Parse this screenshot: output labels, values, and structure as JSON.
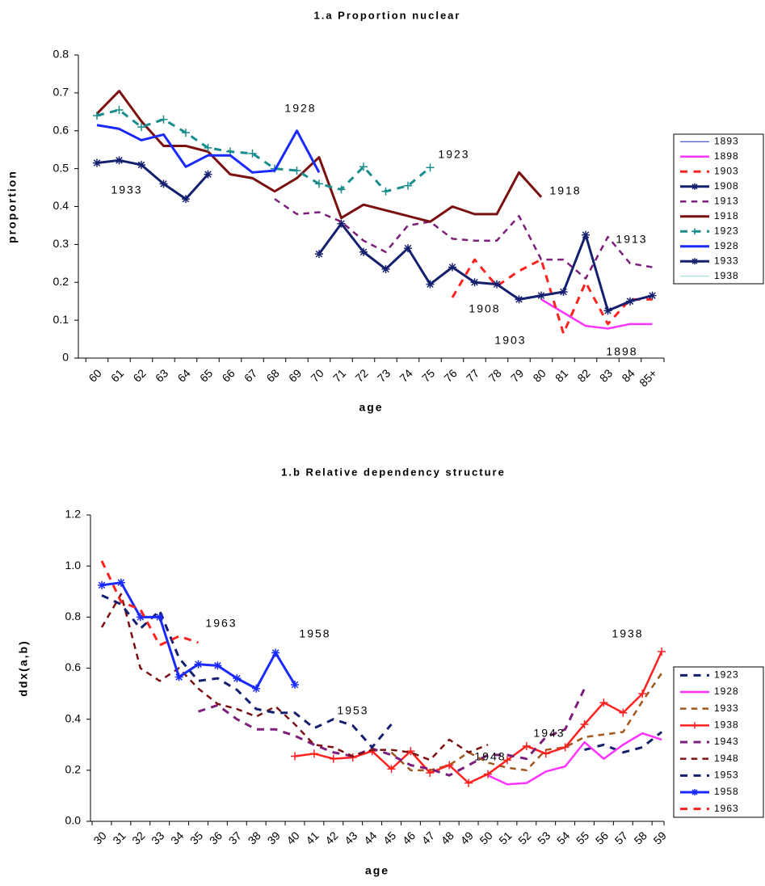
{
  "chart_data": [
    {
      "type": "line",
      "title": "1.a Proportion nuclear",
      "x_label": "age",
      "y_label": "proportion",
      "categories": [
        "60",
        "61",
        "62",
        "63",
        "64",
        "65",
        "66",
        "67",
        "68",
        "69",
        "70",
        "71",
        "72",
        "73",
        "74",
        "75",
        "76",
        "77",
        "78",
        "79",
        "80",
        "81",
        "82",
        "83",
        "84",
        "85+"
      ],
      "ylim": [
        0,
        0.8
      ],
      "yticks": [
        0,
        0.1,
        0.2,
        0.3,
        0.4,
        0.5,
        0.6,
        0.7,
        0.8
      ],
      "legend": "right",
      "series": [
        {
          "name": "1893",
          "color": "#1f2fb0",
          "width": 1,
          "dash": false,
          "marker": "none",
          "values": [
            null,
            null,
            null,
            null,
            null,
            null,
            null,
            null,
            null,
            null,
            null,
            null,
            null,
            null,
            null,
            null,
            null,
            null,
            null,
            null,
            null,
            null,
            null,
            null,
            null,
            null
          ]
        },
        {
          "name": "1898",
          "color": "#ff33ff",
          "width": 2.5,
          "dash": false,
          "marker": "none",
          "values": [
            null,
            null,
            null,
            null,
            null,
            null,
            null,
            null,
            null,
            null,
            null,
            null,
            null,
            null,
            null,
            null,
            null,
            null,
            null,
            null,
            0.155,
            0.12,
            0.085,
            0.078,
            0.09,
            0.09
          ]
        },
        {
          "name": "1903",
          "color": "#ff2020",
          "width": 3,
          "dash": true,
          "marker": "none",
          "values": [
            null,
            null,
            null,
            null,
            null,
            null,
            null,
            null,
            null,
            null,
            null,
            null,
            null,
            null,
            null,
            null,
            0.16,
            0.26,
            0.19,
            0.23,
            0.26,
            0.065,
            0.2,
            0.09,
            0.155,
            0.155
          ]
        },
        {
          "name": "1908",
          "color": "#14206e",
          "width": 3,
          "dash": false,
          "marker": "star",
          "values": [
            null,
            null,
            null,
            null,
            null,
            null,
            null,
            null,
            null,
            null,
            0.275,
            0.355,
            0.28,
            0.235,
            0.29,
            0.195,
            0.24,
            0.2,
            0.195,
            0.155,
            0.165,
            0.175,
            0.325,
            0.125,
            0.15,
            0.165
          ]
        },
        {
          "name": "1913",
          "color": "#7b1f7b",
          "width": 2.5,
          "dash": true,
          "marker": "none",
          "values": [
            null,
            null,
            null,
            null,
            null,
            null,
            null,
            null,
            0.42,
            0.38,
            0.385,
            0.36,
            0.31,
            0.28,
            0.35,
            0.36,
            0.315,
            0.31,
            0.31,
            0.375,
            0.26,
            0.26,
            0.21,
            0.32,
            0.25,
            0.24
          ]
        },
        {
          "name": "1918",
          "color": "#7a1010",
          "width": 3,
          "dash": false,
          "marker": "none",
          "values": [
            0.645,
            0.705,
            0.625,
            0.56,
            0.56,
            0.545,
            0.485,
            0.475,
            0.44,
            0.475,
            0.53,
            0.37,
            0.405,
            0.39,
            0.375,
            0.36,
            0.4,
            0.38,
            0.38,
            0.49,
            0.425,
            null,
            null,
            null,
            null,
            null
          ]
        },
        {
          "name": "1923",
          "color": "#1a8c8c",
          "width": 3,
          "dash": true,
          "marker": "plus",
          "values": [
            0.64,
            0.655,
            0.61,
            0.63,
            0.595,
            0.555,
            0.545,
            0.54,
            0.5,
            0.495,
            0.46,
            0.445,
            0.505,
            0.44,
            0.455,
            0.503,
            null,
            null,
            null,
            null,
            null,
            null,
            null,
            null,
            null,
            null
          ]
        },
        {
          "name": "1928",
          "color": "#1a2aff",
          "width": 3,
          "dash": false,
          "marker": "none",
          "values": [
            0.615,
            0.605,
            0.575,
            0.59,
            0.505,
            0.535,
            0.535,
            0.49,
            0.495,
            0.6,
            0.49,
            null,
            null,
            null,
            null,
            null,
            null,
            null,
            null,
            null,
            null,
            null,
            null,
            null,
            null,
            null
          ]
        },
        {
          "name": "1933",
          "color": "#14206e",
          "width": 3,
          "dash": false,
          "marker": "star",
          "values": [
            0.515,
            0.522,
            0.51,
            0.46,
            0.42,
            0.485,
            null,
            null,
            null,
            null,
            null,
            null,
            null,
            null,
            null,
            null,
            null,
            null,
            null,
            null,
            null,
            null,
            null,
            null,
            null,
            null
          ]
        },
        {
          "name": "1938",
          "color": "#8fe0d8",
          "width": 1,
          "dash": false,
          "marker": "none",
          "values": [
            null,
            null,
            null,
            null,
            null,
            null,
            null,
            null,
            null,
            null,
            null,
            null,
            null,
            null,
            null,
            null,
            null,
            null,
            null,
            null,
            null,
            null,
            null,
            null,
            null,
            null
          ]
        }
      ],
      "annotations": [
        "1928",
        "1923",
        "1933",
        "1918",
        "1913",
        "1908",
        "1903",
        "1898"
      ]
    },
    {
      "type": "line",
      "title": "1.b Relative dependency structure",
      "x_label": "age",
      "y_label": "ddx(a,b)",
      "categories": [
        "30",
        "31",
        "32",
        "33",
        "34",
        "35",
        "36",
        "37",
        "38",
        "39",
        "40",
        "41",
        "42",
        "43",
        "44",
        "45",
        "46",
        "47",
        "48",
        "49",
        "50",
        "51",
        "52",
        "53",
        "54",
        "55",
        "56",
        "57",
        "58",
        "59"
      ],
      "ylim": [
        0,
        1.2
      ],
      "yticks": [
        {
          "value": 0,
          "label": "0.0"
        },
        0.2,
        0.4,
        0.6,
        0.8,
        {
          "value": 1,
          "label": "1.0"
        },
        1.2
      ],
      "legend": "right",
      "series": [
        {
          "name": "1923",
          "color": "#14206e",
          "width": 3,
          "dash": true,
          "marker": "none",
          "values": [
            null,
            null,
            null,
            null,
            null,
            null,
            null,
            null,
            null,
            null,
            null,
            null,
            null,
            null,
            null,
            null,
            null,
            null,
            null,
            null,
            null,
            null,
            null,
            null,
            null,
            0.28,
            0.3,
            0.27,
            0.29,
            0.35
          ]
        },
        {
          "name": "1928",
          "color": "#ff33ff",
          "width": 2.5,
          "dash": false,
          "marker": "none",
          "values": [
            null,
            null,
            null,
            null,
            null,
            null,
            null,
            null,
            null,
            null,
            null,
            null,
            null,
            null,
            null,
            null,
            null,
            null,
            null,
            null,
            0.18,
            0.145,
            0.15,
            0.195,
            0.215,
            0.31,
            0.245,
            0.3,
            0.345,
            0.32
          ]
        },
        {
          "name": "1933",
          "color": "#a0561c",
          "width": 2.5,
          "dash": true,
          "marker": "none",
          "values": [
            null,
            null,
            null,
            null,
            null,
            null,
            null,
            null,
            null,
            null,
            null,
            null,
            null,
            null,
            null,
            0.27,
            0.2,
            0.2,
            0.22,
            0.27,
            0.23,
            0.21,
            0.2,
            0.28,
            0.29,
            0.33,
            0.34,
            0.35,
            0.47,
            0.58
          ]
        },
        {
          "name": "1938",
          "color": "#ff2020",
          "width": 2.5,
          "dash": false,
          "marker": "plus",
          "values": [
            null,
            null,
            null,
            null,
            null,
            null,
            null,
            null,
            null,
            null,
            0.255,
            0.265,
            0.245,
            0.25,
            0.275,
            0.205,
            0.275,
            0.19,
            0.22,
            0.15,
            0.185,
            0.24,
            0.295,
            0.265,
            0.29,
            0.38,
            0.465,
            0.425,
            0.5,
            0.665
          ]
        },
        {
          "name": "1943",
          "color": "#7b1f7b",
          "width": 3,
          "dash": true,
          "marker": "none",
          "values": [
            null,
            null,
            null,
            null,
            null,
            0.43,
            0.455,
            0.4,
            0.36,
            0.36,
            0.335,
            0.3,
            0.27,
            0.255,
            0.285,
            0.26,
            0.22,
            0.205,
            0.18,
            0.22,
            0.26,
            0.26,
            0.245,
            0.33,
            0.36,
            0.52,
            null,
            null,
            null,
            null
          ]
        },
        {
          "name": "1948",
          "color": "#7a1010",
          "width": 2.5,
          "dash": true,
          "marker": "none",
          "values": [
            0.76,
            0.89,
            0.6,
            0.55,
            0.6,
            0.52,
            0.46,
            0.44,
            0.41,
            0.45,
            0.38,
            0.3,
            0.29,
            0.255,
            0.28,
            0.28,
            0.27,
            0.24,
            0.32,
            0.27,
            0.3,
            null,
            null,
            null,
            null,
            null,
            null,
            null,
            null,
            null
          ]
        },
        {
          "name": "1953",
          "color": "#14206e",
          "width": 3,
          "dash": true,
          "marker": "none",
          "values": [
            0.885,
            0.85,
            0.755,
            0.825,
            0.64,
            0.55,
            0.56,
            0.515,
            0.44,
            0.425,
            0.425,
            0.365,
            0.4,
            0.375,
            0.29,
            0.38,
            null,
            null,
            null,
            null,
            null,
            null,
            null,
            null,
            null,
            null,
            null,
            null,
            null,
            null
          ]
        },
        {
          "name": "1958",
          "color": "#1a2aff",
          "width": 3,
          "dash": false,
          "marker": "star",
          "values": [
            0.925,
            0.935,
            0.8,
            0.8,
            0.565,
            0.615,
            0.61,
            0.56,
            0.52,
            0.66,
            0.535,
            null,
            null,
            null,
            null,
            null,
            null,
            null,
            null,
            null,
            null,
            null,
            null,
            null,
            null,
            null,
            null,
            null,
            null,
            null
          ]
        },
        {
          "name": "1963",
          "color": "#ff2020",
          "width": 3,
          "dash": true,
          "marker": "none",
          "values": [
            1.02,
            0.86,
            0.83,
            0.69,
            0.725,
            0.7,
            null,
            null,
            null,
            null,
            null,
            null,
            null,
            null,
            null,
            null,
            null,
            null,
            null,
            null,
            null,
            null,
            null,
            null,
            null,
            null,
            null,
            null,
            null,
            null
          ]
        }
      ],
      "annotations": [
        "1963",
        "1958",
        "1953",
        "1948",
        "1943",
        "1938"
      ]
    }
  ]
}
